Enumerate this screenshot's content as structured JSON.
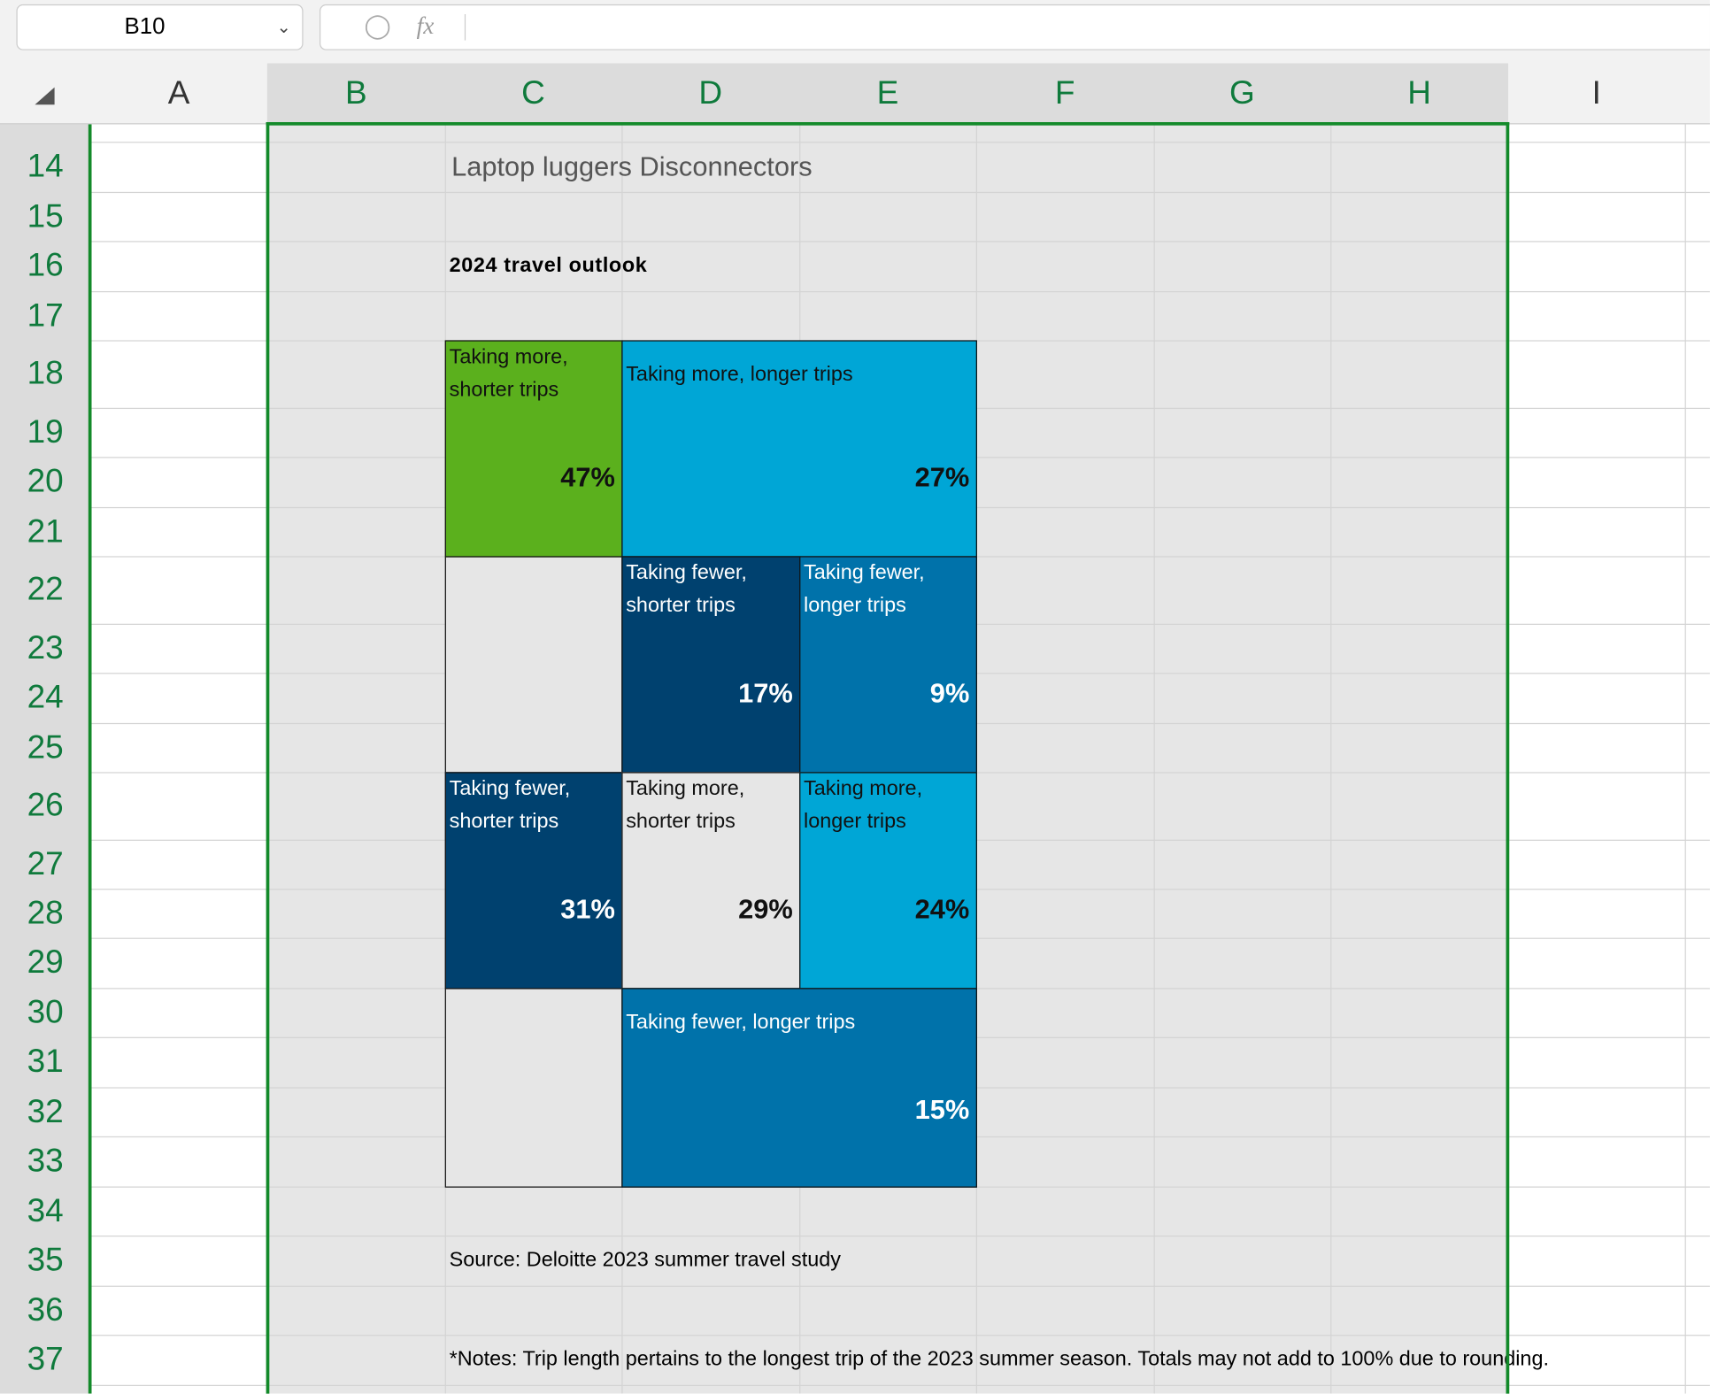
{
  "name_box": "B10",
  "formula_icon": "fx",
  "columns": [
    "A",
    "B",
    "C",
    "D",
    "E",
    "F",
    "G",
    "H",
    "I"
  ],
  "rows": [
    "14",
    "15",
    "16",
    "17",
    "18",
    "19",
    "20",
    "21",
    "22",
    "23",
    "24",
    "25",
    "26",
    "27",
    "28",
    "29",
    "30",
    "31",
    "32",
    "33",
    "34",
    "35",
    "36",
    "37"
  ],
  "sheet": {
    "title": "Laptop luggers Disconnectors",
    "subtitle": "2024 travel outlook",
    "tiles": [
      {
        "label": "Taking more, shorter trips",
        "value": "47%"
      },
      {
        "label": "Taking more, longer trips",
        "value": "27%"
      },
      {
        "label": "Taking fewer, shorter trips",
        "value": "17%"
      },
      {
        "label": "Taking fewer, longer trips",
        "value": "9%"
      },
      {
        "label": "Taking fewer, shorter trips",
        "value": "31%"
      },
      {
        "label": "Taking more, shorter trips",
        "value": "29%"
      },
      {
        "label": "Taking more, longer trips",
        "value": "24%"
      },
      {
        "label": "Taking fewer, longer trips",
        "value": "15%"
      }
    ],
    "source": "Source: Deloitte 2023 summer travel study",
    "notes": "*Notes: Trip length pertains to the longest trip of the 2023 summer season. Totals may not add to 100% due to rounding."
  }
}
